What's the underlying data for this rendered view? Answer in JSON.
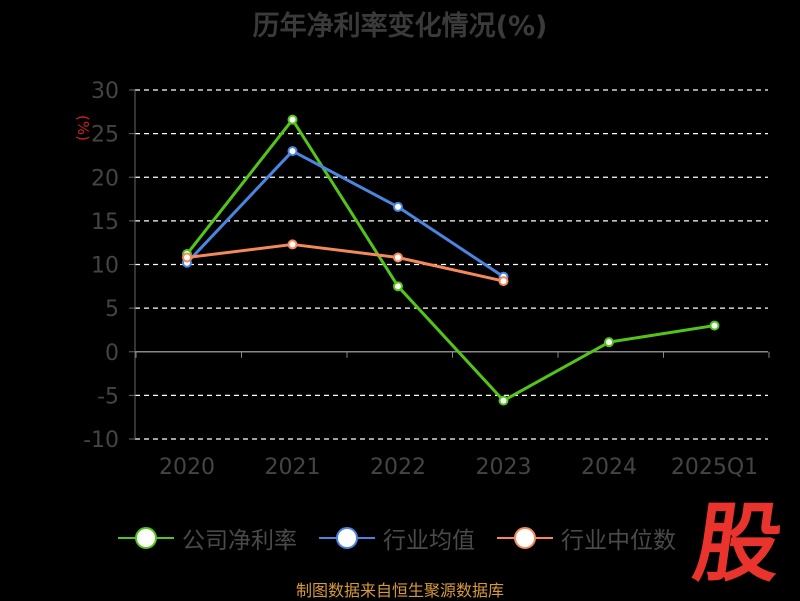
{
  "chart_data": {
    "type": "line",
    "title": "历年净利率变化情况(%)",
    "ylabel": "(%)",
    "categories": [
      "2020",
      "2021",
      "2022",
      "2023",
      "2024",
      "2025Q1"
    ],
    "ylim": [
      -10,
      30
    ],
    "yticks": [
      30,
      25,
      20,
      15,
      10,
      5,
      0,
      -5,
      -10
    ],
    "grid": true,
    "legend_position": "bottom",
    "series": [
      {
        "name": "公司净利率",
        "color": "#52c41a",
        "values": [
          11.2,
          26.6,
          7.5,
          -5.6,
          1.1,
          3.0
        ]
      },
      {
        "name": "行业均值",
        "color": "#4a86e0",
        "values": [
          10.2,
          23.0,
          16.6,
          8.6,
          null,
          null
        ]
      },
      {
        "name": "行业中位数",
        "color": "#f5895a",
        "values": [
          10.8,
          12.3,
          10.8,
          8.1,
          null,
          null
        ]
      }
    ]
  },
  "logo_text": "股",
  "source": "制图数据来自恒生聚源数据库"
}
